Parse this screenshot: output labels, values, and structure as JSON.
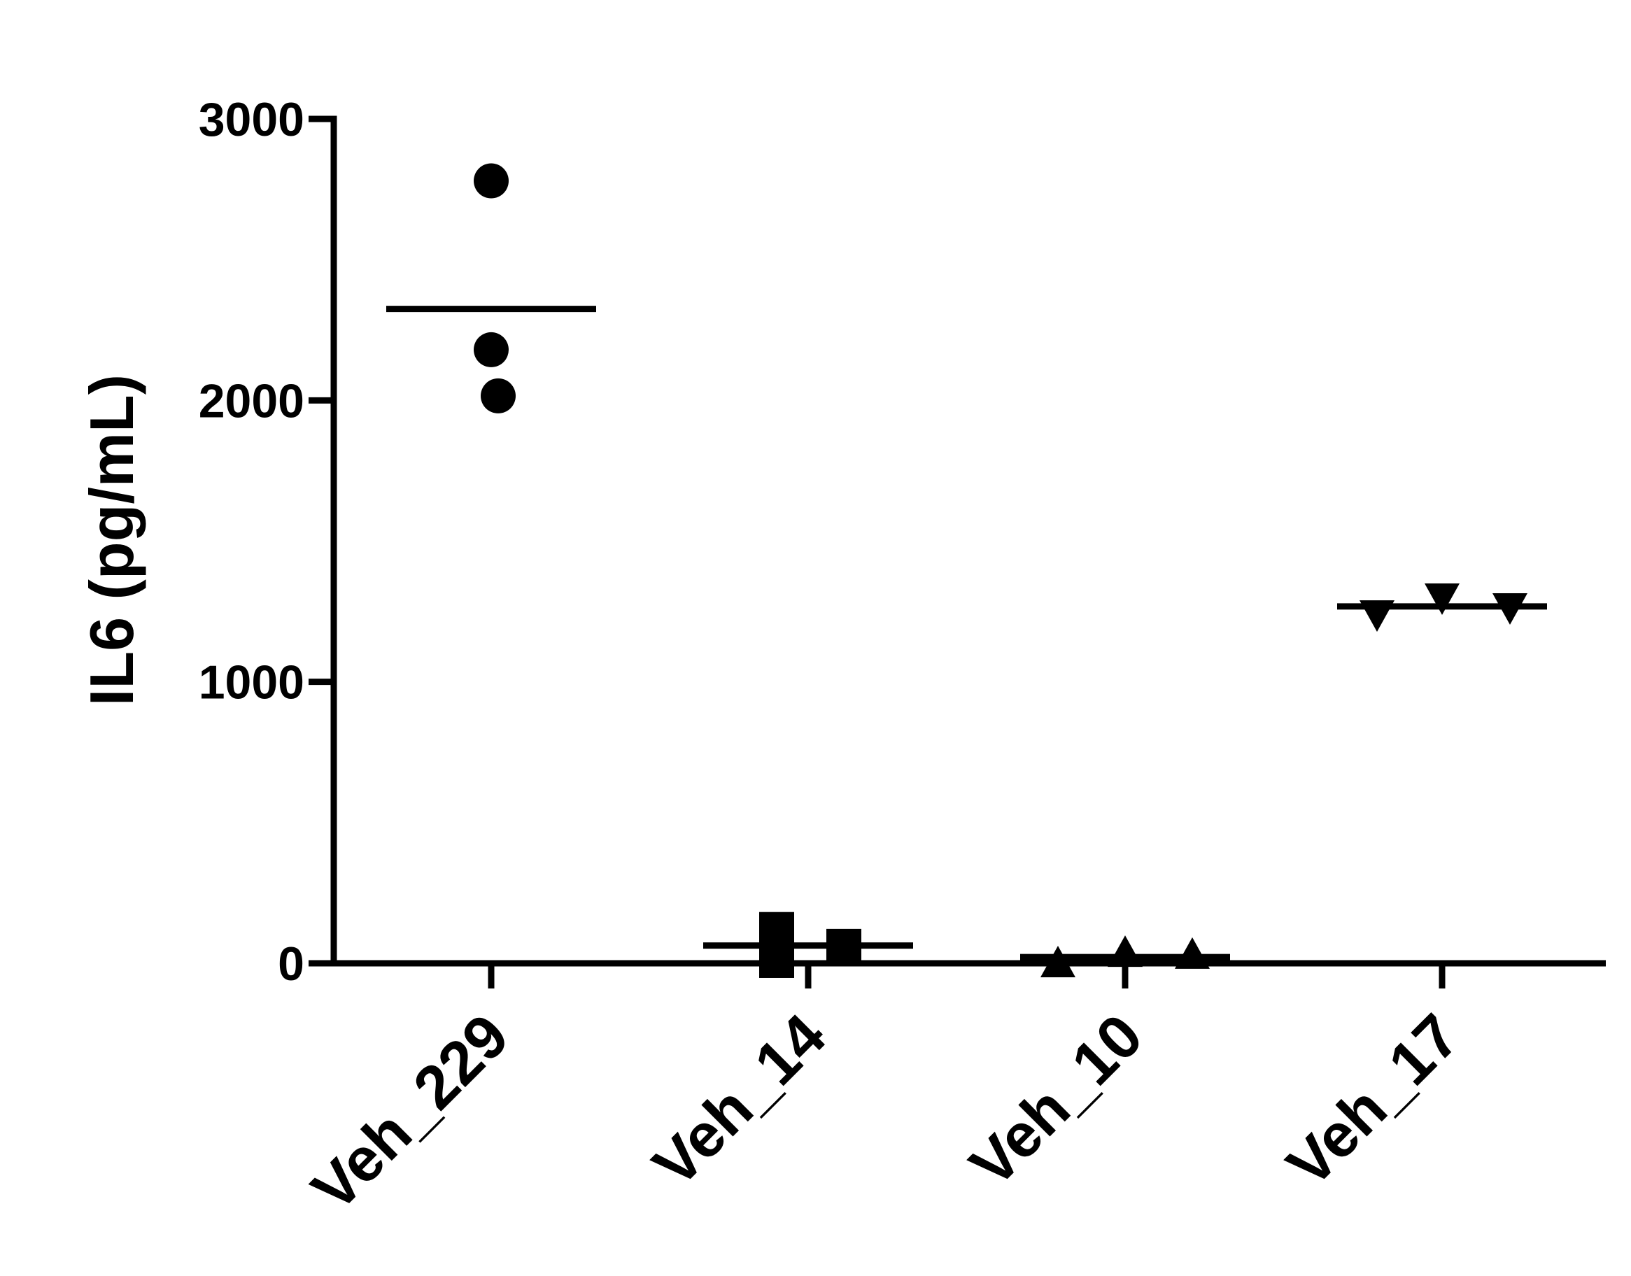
{
  "chart_data": {
    "type": "dot",
    "y_label": "IL6 (pg/mL)",
    "categories": [
      "Veh_229",
      "Veh_14",
      "Veh_10",
      "Veh_17"
    ],
    "points": [
      [
        2780,
        2180,
        2016
      ],
      [
        120,
        10,
        60
      ],
      [
        0,
        37,
        30
      ],
      [
        1240,
        1300,
        1265
      ]
    ],
    "means": [
      2325,
      63,
      22,
      1268
    ],
    "markers": [
      "circle",
      "square",
      "triangle",
      "triangle-down"
    ],
    "color": "#000000",
    "ylim": [
      0,
      3000
    ],
    "yticks": [
      0,
      1000,
      2000,
      3000
    ]
  }
}
